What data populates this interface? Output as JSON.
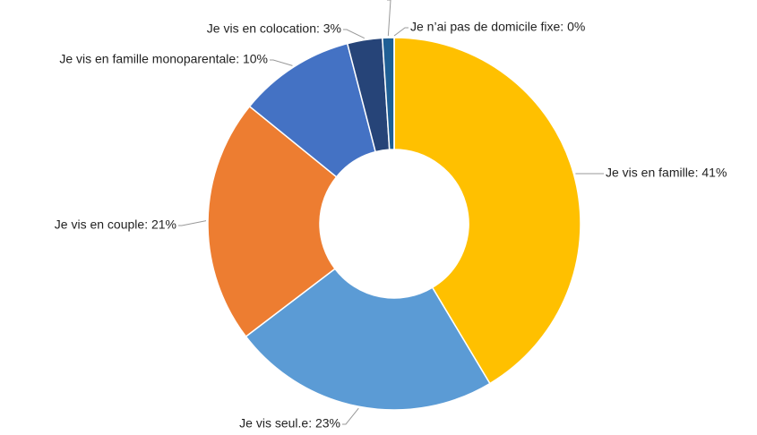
{
  "chart_data": {
    "type": "donut",
    "categories": [
      "Je vis en famille: 41%",
      "Je vis seul.e: 23%",
      "Je vis en couple: 21%",
      "Je vis en famille monoparentale: 10%",
      "Je vis en colocation: 3%",
      null,
      "Je n’ai pas de domicile fixe: 0%"
    ],
    "values": [
      41,
      23,
      21,
      10,
      3,
      1,
      0
    ],
    "colors": [
      "#ffc000",
      "#5b9bd5",
      "#ed7d31",
      "#4472c4",
      "#264478",
      "#1f5f95",
      "#9e480e"
    ]
  }
}
